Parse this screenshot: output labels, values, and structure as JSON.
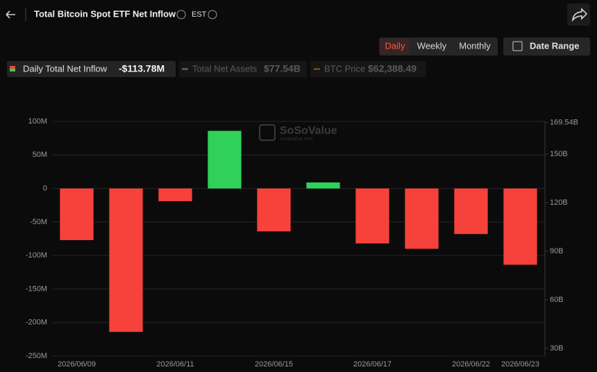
{
  "header": {
    "title": "Total Bitcoin Spot ETF Net Inflow",
    "timezone": "EST"
  },
  "controls": {
    "periods": [
      "Daily",
      "Weekly",
      "Monthly"
    ],
    "active": "Daily",
    "date_range": "Date Range"
  },
  "legend": [
    {
      "name": "Daily Total Net Inflow",
      "value": "-$113.78M",
      "active": true
    },
    {
      "name": "Total Net Assets",
      "value": "$77.54B",
      "active": false
    },
    {
      "name": "BTC Price",
      "value": "$62,388.49",
      "active": false
    }
  ],
  "watermark": {
    "brand": "SoSoValue",
    "site": "sosovalue.com"
  },
  "chart_data": {
    "type": "bar",
    "categories": [
      "2026/06/09",
      null,
      "2026/06/11",
      null,
      "2026/06/15",
      null,
      "2026/06/17",
      null,
      "2026/06/22",
      "2026/06/23"
    ],
    "series": [
      {
        "name": "Daily Total Net Inflow",
        "values": [
          -77,
          -214,
          -19,
          86,
          -64,
          9,
          -82,
          -90,
          -68,
          -113.78
        ],
        "positive_color": "#2fd158",
        "negative_color": "#f6423a"
      }
    ],
    "ylim": [
      -250,
      100
    ],
    "yticks": [
      {
        "value": 100,
        "label": "100M"
      },
      {
        "value": 50,
        "label": "50M"
      },
      0,
      {
        "value": -50,
        "label": "-50M"
      },
      {
        "value": -100,
        "label": "-100M"
      },
      {
        "value": -150,
        "label": "-150M"
      },
      {
        "value": -200,
        "label": "-200M"
      },
      {
        "value": -250,
        "label": "-250M"
      }
    ],
    "y2lim": [
      25.29,
      170.14
    ],
    "y2ticks": [
      {
        "value": 169.54,
        "label": "169.54B"
      },
      {
        "value": 150,
        "label": "150B"
      },
      {
        "value": 120,
        "label": "120B"
      },
      {
        "value": 90,
        "label": "90B"
      },
      {
        "value": 60,
        "label": "60B"
      },
      {
        "value": 30,
        "label": "30B"
      }
    ],
    "grid": true
  }
}
